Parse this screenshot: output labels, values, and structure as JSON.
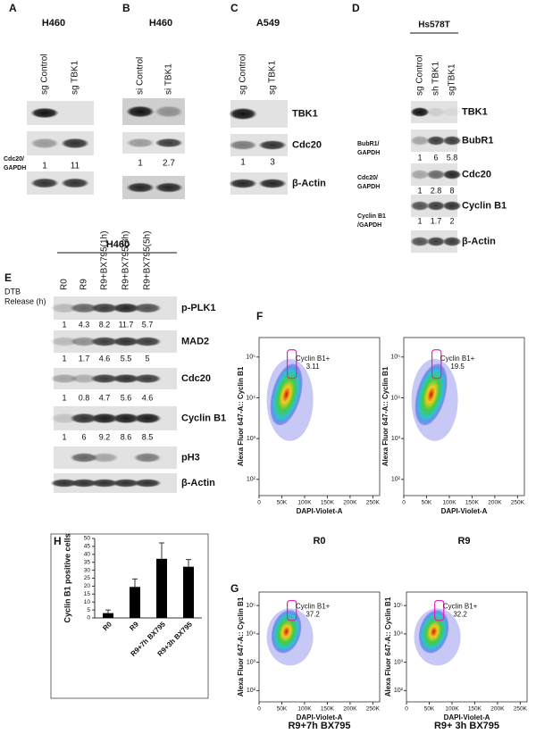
{
  "panel_a": {
    "label": "A",
    "cell_line": "H460",
    "lanes": [
      "sg Control",
      "sg TBK1"
    ],
    "quant_label": [
      "Cdc20/",
      "GAPDH"
    ],
    "quant": [
      1,
      11
    ]
  },
  "panel_b": {
    "label": "B",
    "cell_line": "H460",
    "lanes": [
      "si Control",
      "si TBK1"
    ],
    "quant": [
      1,
      2.7
    ]
  },
  "panel_c": {
    "label": "C",
    "cell_line": "A549",
    "lanes": [
      "sg Control",
      "sg TBK1"
    ],
    "blots": [
      "TBK1",
      "Cdc20",
      "β-Actin"
    ],
    "quant": [
      1,
      3
    ]
  },
  "panel_d": {
    "label": "D",
    "cell_line": "Hs578T",
    "lanes": [
      "sg Control",
      "sh TBK1",
      "sgTBK1"
    ],
    "blots": [
      "TBK1",
      "BubR1",
      "Cdc20",
      "Cyclin B1",
      "β-Actin"
    ],
    "quants": [
      {
        "label": [
          "BubR1/",
          "GAPDH"
        ],
        "values": [
          1,
          6,
          5.8
        ]
      },
      {
        "label": [
          "Cdc20/",
          "GAPDH"
        ],
        "values": [
          1,
          2.8,
          8
        ]
      },
      {
        "label": [
          "Cyclin B1",
          "/GAPDH"
        ],
        "values": [
          1,
          1.7,
          2
        ]
      }
    ]
  },
  "panel_e": {
    "label": "E",
    "cell_line": "H460",
    "row_label": [
      "DTB",
      "Release (h)"
    ],
    "lanes": [
      "R0",
      "R9",
      "R9+BX795(1h)",
      "R9+BX795(3h)",
      "R9+BX795(5h)"
    ],
    "blots": [
      "p-PLK1",
      "MAD2",
      "Cdc20",
      "Cyclin B1",
      "pH3",
      "β-Actin"
    ],
    "quants": [
      [
        1,
        4.3,
        8.2,
        11.7,
        5.7
      ],
      [
        1,
        1.7,
        4.6,
        5.5,
        5
      ],
      [
        1,
        0.8,
        4.7,
        5.6,
        4.6
      ],
      [
        1,
        6,
        9.2,
        8.6,
        8.5
      ]
    ]
  },
  "flow": {
    "labels": [
      "F",
      "G"
    ],
    "x_label": "DAPI-Violet-A",
    "y_label": "Alexa Fluor 647-A:: Cyclin B1",
    "xlim": [
      0,
      265000
    ],
    "xticks": [
      0,
      {
        "value": 50000,
        "label": "50K"
      },
      {
        "value": 100000,
        "label": "100K"
      },
      {
        "value": 150000,
        "label": "150K"
      },
      {
        "value": 200000,
        "label": "200K"
      },
      {
        "value": 250000,
        "label": "250K"
      }
    ],
    "ylim": [
      40,
      300000
    ],
    "yticks": [
      {
        "value": 100,
        "label": "10²"
      },
      {
        "value": 1000,
        "label": "10³"
      },
      {
        "value": 10000,
        "label": "10⁴"
      },
      {
        "value": 100000,
        "label": "10⁵"
      }
    ],
    "plots": [
      {
        "caption": "R0",
        "gate_label": "Cyclin B1+",
        "gate_value": 3.11
      },
      {
        "caption": "R9",
        "gate_label": "Cyclin B1+",
        "gate_value": 19.5
      },
      {
        "caption": "R9+7h BX795",
        "gate_label": "Cyclin B1+",
        "gate_value": 37.2
      },
      {
        "caption": "R9+ 3h BX795",
        "gate_label": "Cyclin B1+",
        "gate_value": 32.2
      }
    ]
  },
  "chart_data": {
    "type": "bar",
    "label": "H",
    "y_label": "Cyclin B1 positive cells",
    "categories": [
      "R0",
      "R9",
      "R9+7h BX795",
      "R9+3h BX795"
    ],
    "values": [
      3,
      19.5,
      37.2,
      32.2
    ],
    "errors": [
      2,
      5,
      10,
      4.5
    ],
    "color": "#000000",
    "ylim": [
      0,
      50
    ],
    "yticks": [
      0,
      5,
      10,
      15,
      20,
      25,
      30,
      35,
      40,
      45,
      50
    ]
  }
}
